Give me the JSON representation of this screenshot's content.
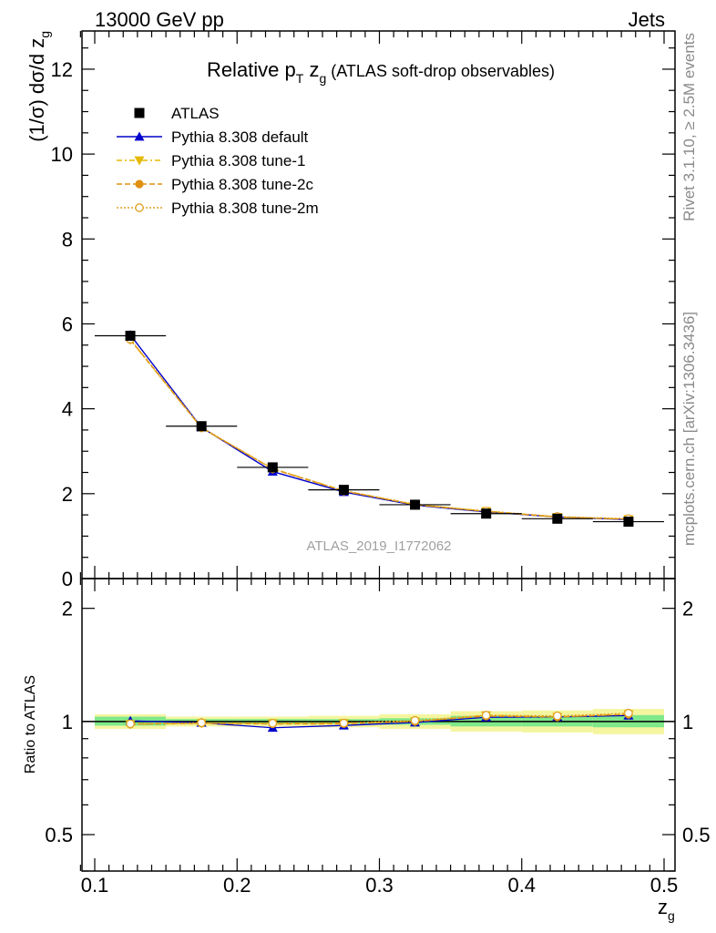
{
  "header": {
    "energy_label": "13000 GeV pp",
    "process_label": "Jets"
  },
  "side": {
    "rivet_label": "Rivet 3.1.10, ≥ 2.5M events",
    "mcplots_label": "mcplots.cern.ch [arXiv:1306.3436]"
  },
  "colors": {
    "data": "#000000",
    "default": "#0000cc",
    "tune1": "#e6b800",
    "tune2c": "#e09010",
    "tune2m": "#e0a020",
    "band_inner": "#7fe88a",
    "band_outer": "#f5f5a0"
  },
  "chart_data": [
    {
      "type": "scatter",
      "title": "Relative p_T z_g (ATLAS soft-drop observables)",
      "title_parts": {
        "main": "Relative p",
        "sub1": "T",
        "mid": " z",
        "sub2": "g",
        "rest": " (ATLAS soft-drop observables)"
      },
      "watermark": "ATLAS_2019_I1772062",
      "ylabel": "(1/σ) dσ/d z",
      "ylabel_sub": "g",
      "xlim": [
        0.09,
        0.5
      ],
      "ylim": [
        0,
        12.9
      ],
      "yticks": [
        0,
        2,
        4,
        6,
        8,
        10,
        12
      ],
      "legend_position": "top-left",
      "x": [
        0.125,
        0.175,
        0.225,
        0.275,
        0.325,
        0.375,
        0.425,
        0.475
      ],
      "xerr": 0.025,
      "series": [
        {
          "name": "ATLAS",
          "marker": "square",
          "values": [
            5.72,
            3.59,
            2.62,
            2.09,
            1.74,
            1.53,
            1.41,
            1.34
          ]
        },
        {
          "name": "Pythia 8.308 default",
          "marker": "triangle-up",
          "values": [
            5.74,
            3.56,
            2.52,
            2.04,
            1.73,
            1.57,
            1.45,
            1.39
          ]
        },
        {
          "name": "Pythia 8.308 tune-1",
          "marker": "triangle-down",
          "values": [
            5.62,
            3.55,
            2.59,
            2.07,
            1.74,
            1.59,
            1.45,
            1.4
          ]
        },
        {
          "name": "Pythia 8.308 tune-2c",
          "marker": "circle",
          "values": [
            5.63,
            3.55,
            2.58,
            2.06,
            1.74,
            1.58,
            1.45,
            1.4
          ]
        },
        {
          "name": "Pythia 8.308 tune-2m",
          "marker": "circle-open",
          "values": [
            5.64,
            3.56,
            2.59,
            2.07,
            1.75,
            1.59,
            1.46,
            1.41
          ]
        }
      ]
    },
    {
      "type": "scatter",
      "ylabel": "Ratio to ATLAS",
      "xlabel": "z",
      "xlabel_sub": "g",
      "xlim": [
        0.09,
        0.5
      ],
      "ylim": [
        0.4,
        2.4
      ],
      "log_y": true,
      "yticks": [
        0.5,
        1,
        2
      ],
      "ytick_labels": [
        "0.5",
        "1",
        "2"
      ],
      "xticks": [
        0.1,
        0.2,
        0.3,
        0.4,
        0.5
      ],
      "xtick_labels": [
        "0.1",
        "0.2",
        "0.3",
        "0.4",
        "0.5"
      ],
      "x": [
        0.125,
        0.175,
        0.225,
        0.275,
        0.325,
        0.375,
        0.425,
        0.475
      ],
      "band_inner": [
        [
          0.975,
          1.03
        ],
        [
          0.985,
          1.015
        ],
        [
          0.985,
          1.015
        ],
        [
          0.985,
          1.015
        ],
        [
          0.98,
          1.02
        ],
        [
          0.97,
          1.035
        ],
        [
          0.97,
          1.035
        ],
        [
          0.965,
          1.04
        ]
      ],
      "band_outer": [
        [
          0.955,
          1.045
        ],
        [
          0.97,
          1.03
        ],
        [
          0.97,
          1.03
        ],
        [
          0.965,
          1.035
        ],
        [
          0.955,
          1.045
        ],
        [
          0.94,
          1.065
        ],
        [
          0.935,
          1.07
        ],
        [
          0.925,
          1.08
        ]
      ],
      "series": [
        {
          "name": "Pythia 8.308 default",
          "values": [
            1.004,
            0.992,
            0.962,
            0.976,
            0.994,
            1.026,
            1.028,
            1.037
          ]
        },
        {
          "name": "Pythia 8.308 tune-1",
          "values": [
            0.983,
            0.989,
            0.989,
            0.99,
            1.0,
            1.039,
            1.028,
            1.045
          ]
        },
        {
          "name": "Pythia 8.308 tune-2c",
          "values": [
            0.984,
            0.989,
            0.985,
            0.986,
            1.0,
            1.033,
            1.028,
            1.045
          ]
        },
        {
          "name": "Pythia 8.308 tune-2m",
          "values": [
            0.986,
            0.992,
            0.989,
            0.99,
            1.006,
            1.039,
            1.035,
            1.052
          ]
        }
      ]
    }
  ]
}
